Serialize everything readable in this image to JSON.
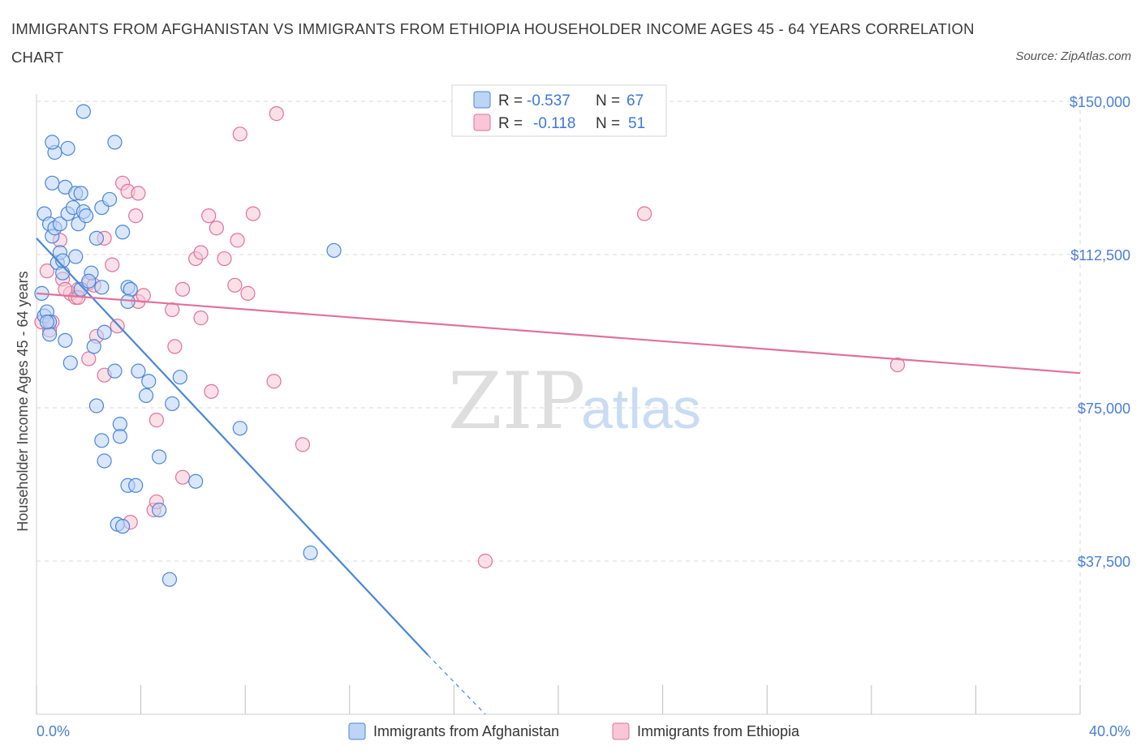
{
  "title": "IMMIGRANTS FROM AFGHANISTAN VS IMMIGRANTS FROM ETHIOPIA HOUSEHOLDER INCOME AGES 45 - 64 YEARS CORRELATION CHART",
  "source": "Source: ZipAtlas.com",
  "watermark": {
    "zip": "ZIP",
    "atlas": "atlas"
  },
  "colors": {
    "afghanistan": "#4a86d8",
    "afghanistan_fill": "#bcd4f5",
    "ethiopia": "#e0729b",
    "ethiopia_fill": "#f8c6d6",
    "tick_label": "#4a7fd4",
    "grid": "#d9d9d9"
  },
  "legend": {
    "r_label": "R =",
    "n_label": "N =",
    "rows": [
      {
        "r": "-0.537",
        "n": "67"
      },
      {
        "r": "-0.118",
        "n": "51"
      }
    ]
  },
  "chart_data": {
    "type": "scatter",
    "ylabel": "Householder Income Ages 45 - 64 years",
    "xlim": [
      0,
      40
    ],
    "ylim": [
      0,
      150000
    ],
    "x_tick_labels": [
      "0.0%",
      "40.0%"
    ],
    "y_ticks": [
      {
        "value": 150000,
        "label": "$150,000"
      },
      {
        "value": 112500,
        "label": "$112,500"
      },
      {
        "value": 75000,
        "label": "$75,000"
      },
      {
        "value": 37500,
        "label": "$37,500"
      }
    ],
    "grid": true,
    "series": [
      {
        "name": "Immigrants from Afghanistan",
        "points": [
          [
            0.3,
            97500
          ],
          [
            0.4,
            98500
          ],
          [
            0.2,
            103000
          ],
          [
            0.5,
            96000
          ],
          [
            0.3,
            122500
          ],
          [
            0.5,
            120000
          ],
          [
            0.6,
            117000
          ],
          [
            0.8,
            110500
          ],
          [
            0.9,
            113000
          ],
          [
            1.0,
            108000
          ],
          [
            0.7,
            119000
          ],
          [
            0.6,
            130000
          ],
          [
            0.7,
            137500
          ],
          [
            0.9,
            120000
          ],
          [
            0.6,
            140000
          ],
          [
            1.1,
            129000
          ],
          [
            1.2,
            122500
          ],
          [
            1.2,
            138500
          ],
          [
            1.5,
            127500
          ],
          [
            1.4,
            124000
          ],
          [
            1.6,
            120000
          ],
          [
            1.5,
            112000
          ],
          [
            1.7,
            127500
          ],
          [
            1.8,
            123000
          ],
          [
            1.9,
            122000
          ],
          [
            2.1,
            108000
          ],
          [
            1.7,
            104000
          ],
          [
            2.0,
            106000
          ],
          [
            1.8,
            147500
          ],
          [
            2.3,
            116500
          ],
          [
            2.5,
            124000
          ],
          [
            2.8,
            126000
          ],
          [
            3.0,
            140000
          ],
          [
            3.3,
            118000
          ],
          [
            3.5,
            104500
          ],
          [
            3.6,
            104000
          ],
          [
            3.5,
            101000
          ],
          [
            2.5,
            104500
          ],
          [
            1.1,
            91500
          ],
          [
            1.3,
            86000
          ],
          [
            2.2,
            90000
          ],
          [
            2.6,
            93500
          ],
          [
            3.0,
            84000
          ],
          [
            3.9,
            84000
          ],
          [
            4.3,
            81500
          ],
          [
            4.2,
            78000
          ],
          [
            2.3,
            75500
          ],
          [
            5.2,
            76000
          ],
          [
            5.5,
            82500
          ],
          [
            3.2,
            71000
          ],
          [
            3.2,
            68000
          ],
          [
            2.5,
            67000
          ],
          [
            2.6,
            62000
          ],
          [
            4.7,
            63000
          ],
          [
            3.5,
            56000
          ],
          [
            3.8,
            56000
          ],
          [
            6.1,
            57000
          ],
          [
            4.7,
            50000
          ],
          [
            3.1,
            46500
          ],
          [
            3.3,
            46000
          ],
          [
            5.1,
            33000
          ],
          [
            7.8,
            70000
          ],
          [
            10.5,
            39500
          ],
          [
            11.4,
            113500
          ],
          [
            0.5,
            93000
          ],
          [
            0.4,
            96000
          ],
          [
            1.0,
            111000
          ]
        ],
        "trend": {
          "x1": 0,
          "y1": 116500,
          "x2": 15.0,
          "y2": 14500,
          "dash_x2": 17.2,
          "dash_y2": 0
        }
      },
      {
        "name": "Immigrants from Ethiopia",
        "points": [
          [
            0.2,
            96000
          ],
          [
            0.4,
            108500
          ],
          [
            0.5,
            94000
          ],
          [
            0.6,
            96000
          ],
          [
            0.9,
            116000
          ],
          [
            1.0,
            106500
          ],
          [
            1.3,
            103000
          ],
          [
            1.5,
            102000
          ],
          [
            1.6,
            104000
          ],
          [
            1.6,
            102000
          ],
          [
            2.0,
            105500
          ],
          [
            2.2,
            105000
          ],
          [
            2.0,
            87000
          ],
          [
            2.3,
            92500
          ],
          [
            2.6,
            83000
          ],
          [
            2.6,
            116500
          ],
          [
            2.9,
            110000
          ],
          [
            3.1,
            95000
          ],
          [
            3.3,
            130000
          ],
          [
            3.5,
            128000
          ],
          [
            3.9,
            127500
          ],
          [
            3.8,
            122000
          ],
          [
            3.9,
            101000
          ],
          [
            4.1,
            102500
          ],
          [
            4.6,
            72000
          ],
          [
            5.2,
            99000
          ],
          [
            5.3,
            90000
          ],
          [
            5.6,
            104000
          ],
          [
            6.1,
            111500
          ],
          [
            6.3,
            113000
          ],
          [
            6.3,
            97000
          ],
          [
            6.6,
            122000
          ],
          [
            6.9,
            119000
          ],
          [
            7.2,
            111500
          ],
          [
            7.6,
            105000
          ],
          [
            7.7,
            116000
          ],
          [
            8.1,
            103000
          ],
          [
            8.3,
            122500
          ],
          [
            9.1,
            81500
          ],
          [
            9.2,
            147000
          ],
          [
            10.2,
            66000
          ],
          [
            7.8,
            142000
          ],
          [
            6.7,
            79000
          ],
          [
            5.6,
            58000
          ],
          [
            4.5,
            50000
          ],
          [
            4.6,
            52000
          ],
          [
            3.6,
            47000
          ],
          [
            17.2,
            37500
          ],
          [
            23.3,
            122500
          ],
          [
            33.0,
            85500
          ],
          [
            1.1,
            104000
          ]
        ],
        "trend": {
          "x1": 0,
          "y1": 103000,
          "x2": 40,
          "y2": 83500
        }
      }
    ]
  }
}
